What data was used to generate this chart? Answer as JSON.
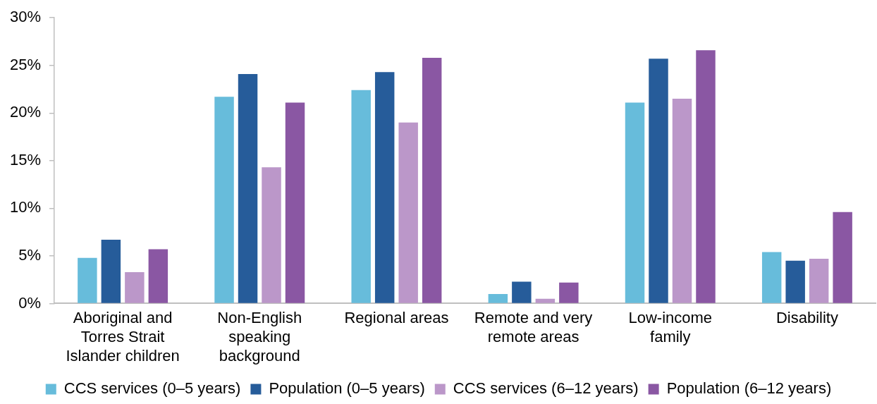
{
  "chart_data": {
    "type": "bar",
    "categories": [
      "Aboriginal and Torres Strait Islander children",
      "Non-English speaking background",
      "Regional areas",
      "Remote and very remote areas",
      "Low-income family",
      "Disability"
    ],
    "series": [
      {
        "name": "CCS services (0–5 years)",
        "color": "#67bcdb",
        "values": [
          4.8,
          21.7,
          22.4,
          1.0,
          21.1,
          5.4
        ]
      },
      {
        "name": "Population (0–5 years)",
        "color": "#265c9a",
        "values": [
          6.7,
          24.1,
          24.3,
          2.3,
          25.7,
          4.5
        ]
      },
      {
        "name": "CCS services (6–12 years)",
        "color": "#bb97c9",
        "values": [
          3.3,
          14.3,
          19.0,
          0.5,
          21.5,
          4.7
        ]
      },
      {
        "name": "Population (6–12 years)",
        "color": "#8a57a3",
        "values": [
          5.7,
          21.1,
          25.8,
          2.2,
          26.6,
          9.6
        ]
      }
    ],
    "ylim": [
      0,
      30
    ],
    "yticks": [
      {
        "value": 0,
        "label": "0%"
      },
      {
        "value": 5,
        "label": "5%"
      },
      {
        "value": 10,
        "label": "10%"
      },
      {
        "value": 15,
        "label": "15%"
      },
      {
        "value": 20,
        "label": "20%"
      },
      {
        "value": 25,
        "label": "25%"
      },
      {
        "value": 30,
        "label": "30%"
      }
    ],
    "legend": "bottom"
  }
}
